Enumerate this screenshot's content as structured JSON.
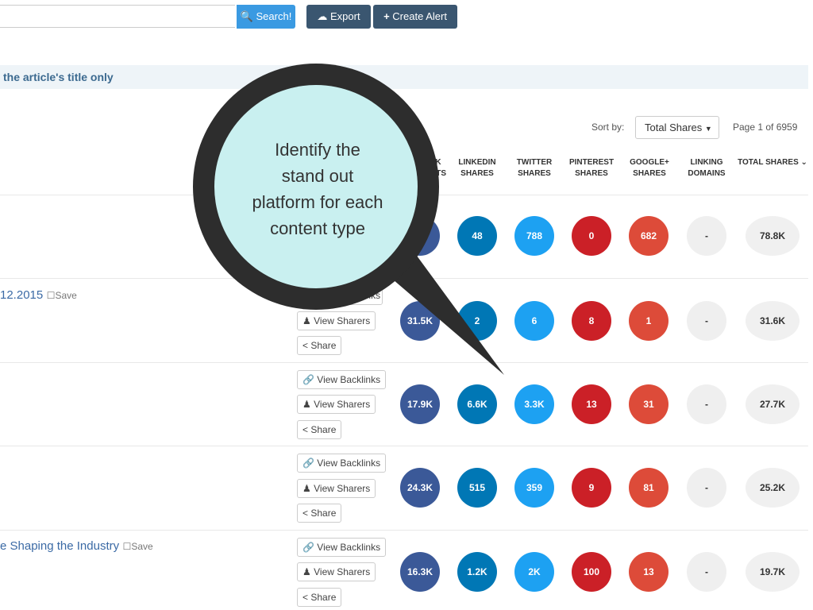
{
  "toolbar": {
    "search_label": "Search!",
    "export_label": "Export",
    "create_alert_label": "Create Alert"
  },
  "info_bar": {
    "text": "the article's title only"
  },
  "sort": {
    "label": "Sort by:",
    "selected": "Total Shares",
    "page_info": "Page 1 of 6959"
  },
  "columns": {
    "facebook": [
      "K",
      "NTS"
    ],
    "linkedin": [
      "LINKEDIN",
      "SHARES"
    ],
    "twitter": [
      "TWITTER",
      "SHARES"
    ],
    "pinterest": [
      "PINTEREST",
      "SHARES"
    ],
    "googleplus": [
      "GOOGLE+",
      "SHARES"
    ],
    "linking": [
      "LINKING",
      "DOMAINS"
    ],
    "total": "TOTAL SHARES"
  },
  "actions": {
    "backlinks": "View Backlinks",
    "sharers": "View Sharers",
    "share": "Share"
  },
  "rows": [
    {
      "title": "",
      "save": "",
      "facebook": "K",
      "linkedin": "48",
      "twitter": "788",
      "pinterest": "0",
      "googleplus": "682",
      "linking": "-",
      "total": "78.8K"
    },
    {
      "title": "12.2015",
      "save": "Save",
      "facebook": "31.5K",
      "linkedin": "2",
      "twitter": "6",
      "pinterest": "8",
      "googleplus": "1",
      "linking": "-",
      "total": "31.6K"
    },
    {
      "title": "",
      "save": "",
      "facebook": "17.9K",
      "linkedin": "6.6K",
      "twitter": "3.3K",
      "pinterest": "13",
      "googleplus": "31",
      "linking": "-",
      "total": "27.7K"
    },
    {
      "title": "",
      "save": "",
      "facebook": "24.3K",
      "linkedin": "515",
      "twitter": "359",
      "pinterest": "9",
      "googleplus": "81",
      "linking": "-",
      "total": "25.2K"
    },
    {
      "title": "e Shaping the Industry",
      "save": "Save",
      "facebook": "16.3K",
      "linkedin": "1.2K",
      "twitter": "2K",
      "pinterest": "100",
      "googleplus": "13",
      "linking": "-",
      "total": "19.7K"
    }
  ],
  "callout": {
    "lines": [
      "Identify the",
      "stand out",
      "platform for each",
      "content type"
    ]
  },
  "colors": {
    "facebook": "#3b5998",
    "linkedin": "#0077b5",
    "twitter": "#1da1f2",
    "pinterest": "#cb2027",
    "googleplus": "#dd4b39",
    "toolbar": "#3a5670",
    "search": "#3a9ae2"
  },
  "icons": {
    "search": "search-icon",
    "export": "cloud-upload-icon",
    "create_alert": "plus-icon",
    "backlinks": "link-icon",
    "sharers": "users-icon",
    "share": "share-icon",
    "save": "bookmark-icon",
    "sort": "caret-down-icon",
    "total_sort": "chevron-down-icon"
  }
}
